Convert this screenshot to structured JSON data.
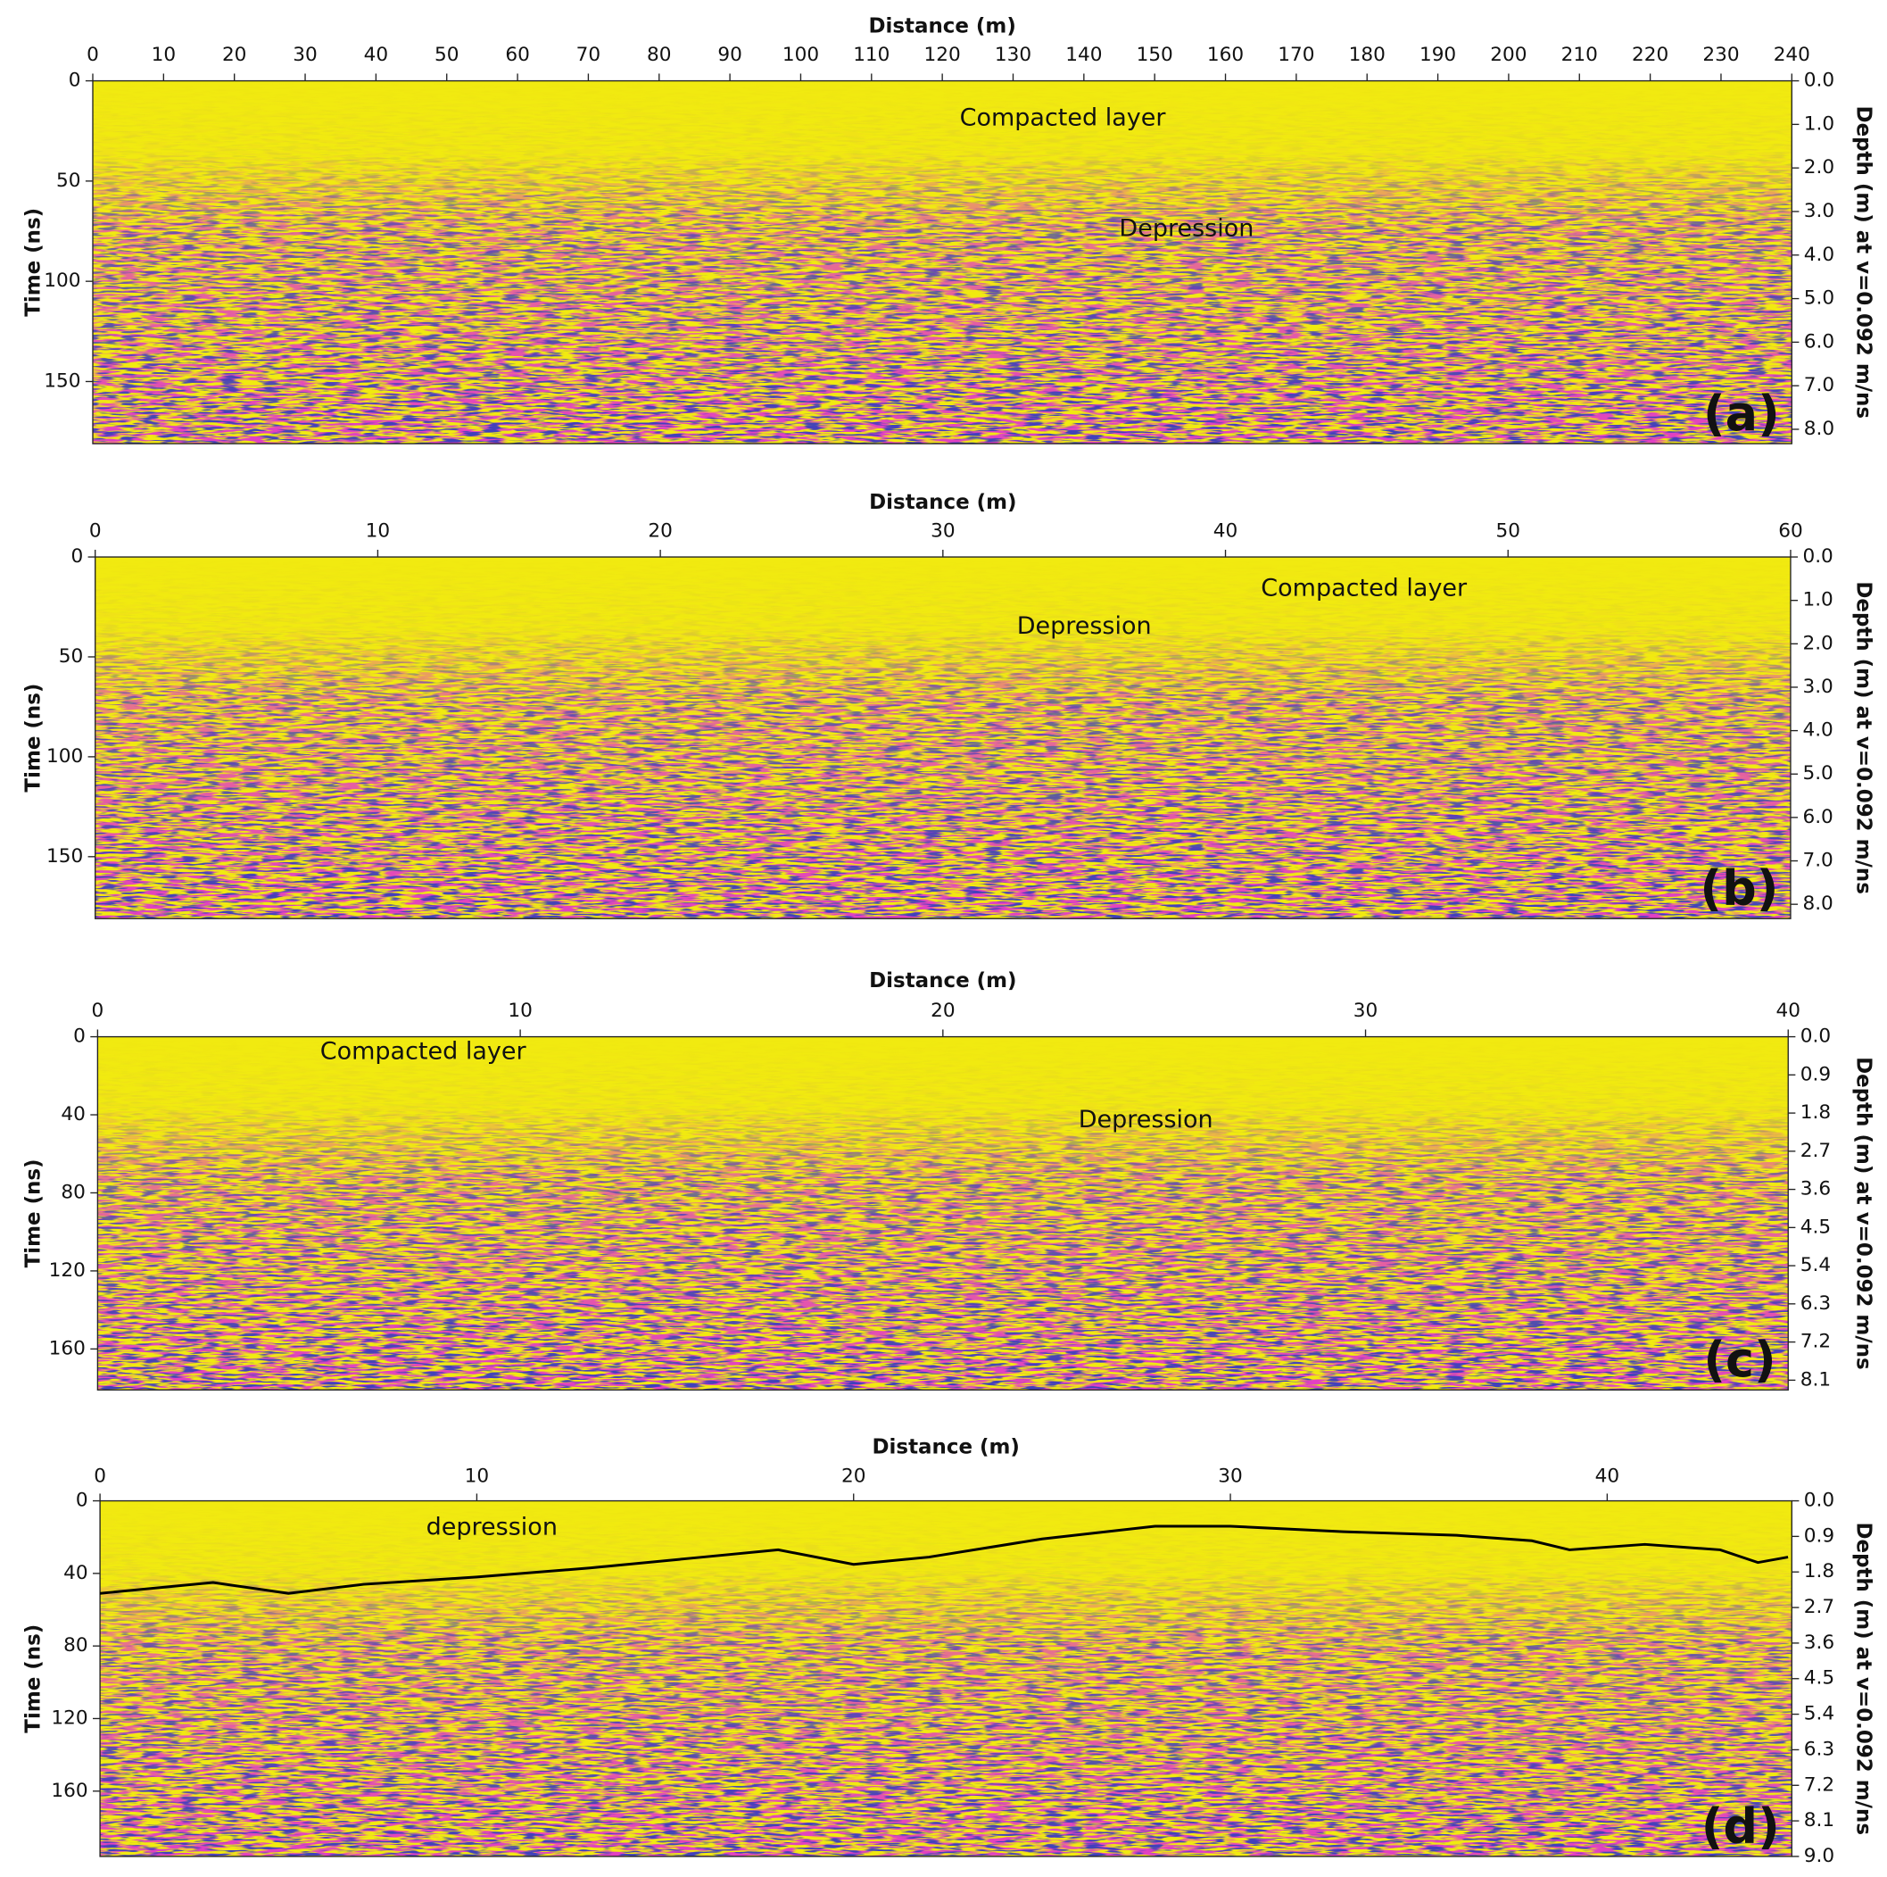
{
  "chart_data": [
    {
      "type": "radargram",
      "panel_label": "(a)",
      "xlabel": "Distance (m)",
      "ylabel": "Time (ns)",
      "y2label": "Depth (m) at v=0.092 m/ns",
      "xlim": [
        0,
        240
      ],
      "xticks": [
        0,
        10,
        20,
        30,
        40,
        50,
        60,
        70,
        80,
        90,
        100,
        110,
        120,
        130,
        140,
        150,
        160,
        170,
        180,
        190,
        200,
        210,
        220,
        230,
        240
      ],
      "ylim": [
        0,
        181
      ],
      "yticks": [
        0,
        50,
        100,
        150
      ],
      "y2lim": [
        0,
        8.33
      ],
      "y2ticks": [
        {
          "value": 0,
          "label": "0.0"
        },
        {
          "value": 1,
          "label": "1.0"
        },
        {
          "value": 2,
          "label": "2.0"
        },
        {
          "value": 3,
          "label": "3.0"
        },
        {
          "value": 4,
          "label": "4.0"
        },
        {
          "value": 5,
          "label": "5.0"
        },
        {
          "value": 6,
          "label": "6.0"
        },
        {
          "value": 7,
          "label": "7.0"
        },
        {
          "value": 8,
          "label": "8.0"
        }
      ],
      "annotations": [
        {
          "text": "Compacted layer",
          "x": 137,
          "y": 19
        },
        {
          "text": "Depression",
          "x": 154.5,
          "y": 74
        }
      ]
    },
    {
      "type": "radargram",
      "panel_label": "(b)",
      "xlabel": "Distance (m)",
      "ylabel": "Time (ns)",
      "y2label": "Depth (m) at v=0.092 m/ns",
      "xlim": [
        0,
        60
      ],
      "xticks": [
        0,
        10,
        20,
        30,
        40,
        50,
        60
      ],
      "ylim": [
        0,
        181
      ],
      "yticks": [
        0,
        50,
        100,
        150
      ],
      "y2lim": [
        0,
        8.33
      ],
      "y2ticks": [
        {
          "value": 0,
          "label": "0.0"
        },
        {
          "value": 1,
          "label": "1.0"
        },
        {
          "value": 2,
          "label": "2.0"
        },
        {
          "value": 3,
          "label": "3.0"
        },
        {
          "value": 4,
          "label": "4.0"
        },
        {
          "value": 5,
          "label": "5.0"
        },
        {
          "value": 6,
          "label": "6.0"
        },
        {
          "value": 7,
          "label": "7.0"
        },
        {
          "value": 8,
          "label": "8.0"
        }
      ],
      "annotations": [
        {
          "text": "Compacted layer",
          "x": 44.9,
          "y": 16
        },
        {
          "text": "Depression",
          "x": 35,
          "y": 35
        }
      ]
    },
    {
      "type": "radargram",
      "panel_label": "(c)",
      "xlabel": "Distance (m)",
      "ylabel": "Time (ns)",
      "y2label": "Depth (m) at v=0.092 m/ns",
      "xlim": [
        0,
        40
      ],
      "xticks": [
        0,
        10,
        20,
        30,
        40
      ],
      "ylim": [
        0,
        181
      ],
      "yticks": [
        0,
        40,
        80,
        120,
        160
      ],
      "y2lim": [
        0,
        8.33
      ],
      "y2ticks": [
        {
          "value": 0,
          "label": "0.0"
        },
        0.9,
        1.8,
        2.7,
        3.6,
        4.5,
        5.4,
        6.3,
        7.2,
        8.1
      ],
      "annotations": [
        {
          "text": "Compacted layer",
          "x": 7.7,
          "y": 8
        },
        {
          "text": "Depression",
          "x": 24.8,
          "y": 43
        }
      ]
    },
    {
      "type": "radargram",
      "panel_label": "(d)",
      "xlabel": "Distance (m)",
      "ylabel": "Time (ns)",
      "y2label": "Depth (m) at v=0.092 m/ns",
      "xlim": [
        0,
        44.9
      ],
      "xticks": [
        0,
        10,
        20,
        30,
        40
      ],
      "ylim": [
        0,
        196
      ],
      "yticks": [
        0,
        40,
        80,
        120,
        160
      ],
      "y2lim": [
        0,
        9.0
      ],
      "y2ticks": [
        {
          "value": 0,
          "label": "0.0"
        },
        0.9,
        1.8,
        2.7,
        3.6,
        4.5,
        5.4,
        6.3,
        7.2,
        8.1,
        {
          "value": 9,
          "label": "9.0"
        }
      ],
      "annotations": [
        {
          "text": "depression",
          "x": 10.4,
          "y": 15
        }
      ],
      "line": {
        "color": "#000000",
        "x": [
          0,
          3,
          5,
          7,
          10,
          13,
          16,
          18,
          20,
          22,
          25,
          28,
          30,
          33,
          36,
          38,
          39,
          41,
          43,
          44,
          44.8
        ],
        "values": [
          51,
          45,
          51,
          46,
          42,
          37,
          31,
          27,
          35,
          31,
          21,
          14,
          14,
          17,
          19,
          22,
          27,
          24,
          27,
          34,
          31
        ]
      }
    }
  ]
}
